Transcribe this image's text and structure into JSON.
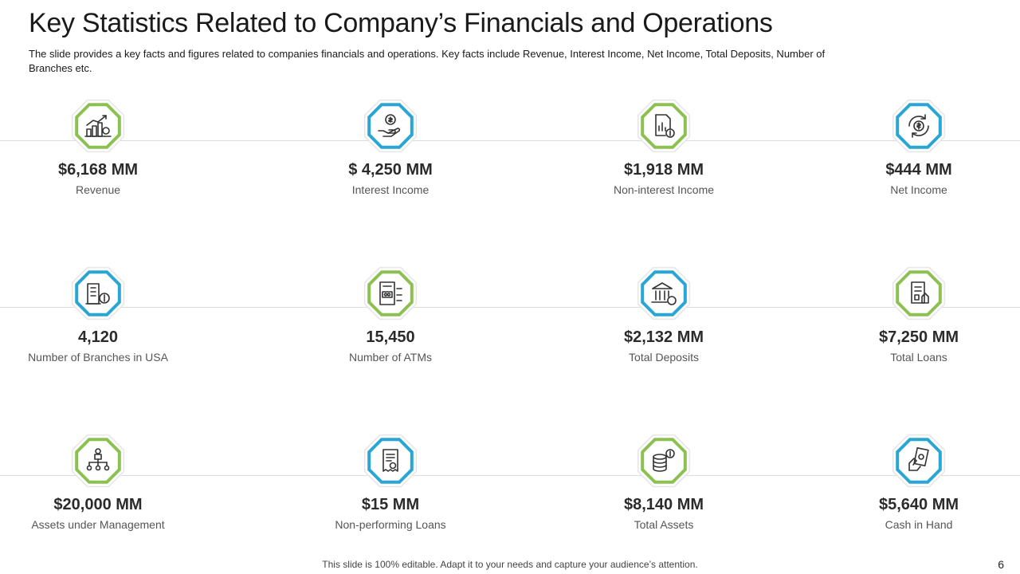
{
  "slide": {
    "title": "Key Statistics Related to Company’s Financials and Operations",
    "subtitle": "The slide provides a key facts and figures related to companies financials and operations. Key facts include Revenue, Interest Income, Net Income, Total Deposits, Number of Branches etc.",
    "footer": "This slide is 100% editable. Adapt it to your needs and capture your audience’s attention.",
    "page_number": "6"
  },
  "colors": {
    "green": "#8cc152",
    "blue": "#2aa6d4",
    "outline": "#e6e6e6",
    "icon": "#333333"
  },
  "stats": [
    {
      "value": "$6,168 MM",
      "label": "Revenue",
      "icon": "growth-chart-icon",
      "color": "green"
    },
    {
      "value": "$ 4,250 MM",
      "label": "Interest Income",
      "icon": "hand-coin-icon",
      "color": "blue"
    },
    {
      "value": "$1,918 MM",
      "label": "Non-interest Income",
      "icon": "document-dollar-icon",
      "color": "green"
    },
    {
      "value": "$444 MM",
      "label": "Net Income",
      "icon": "dollar-cycle-icon",
      "color": "blue"
    },
    {
      "value": "4,120",
      "label": "Number of Branches in USA",
      "icon": "building-dollar-icon",
      "color": "blue"
    },
    {
      "value": "15,450",
      "label": "Number of ATMs",
      "icon": "atm-icon",
      "color": "green"
    },
    {
      "value": "$2,132 MM",
      "label": "Total Deposits",
      "icon": "bank-icon",
      "color": "blue"
    },
    {
      "value": "$7,250 MM",
      "label": "Total Loans",
      "icon": "loan-document-icon",
      "color": "green"
    },
    {
      "value": "$20,000 MM",
      "label": "Assets under Management",
      "icon": "org-chart-icon",
      "color": "green"
    },
    {
      "value": "$15 MM",
      "label": "Non-performing Loans",
      "icon": "receipt-icon",
      "color": "blue"
    },
    {
      "value": "$8,140 MM",
      "label": "Total Assets",
      "icon": "coin-stack-icon",
      "color": "green"
    },
    {
      "value": "$5,640 MM",
      "label": "Cash in Hand",
      "icon": "hand-cash-icon",
      "color": "blue"
    }
  ]
}
